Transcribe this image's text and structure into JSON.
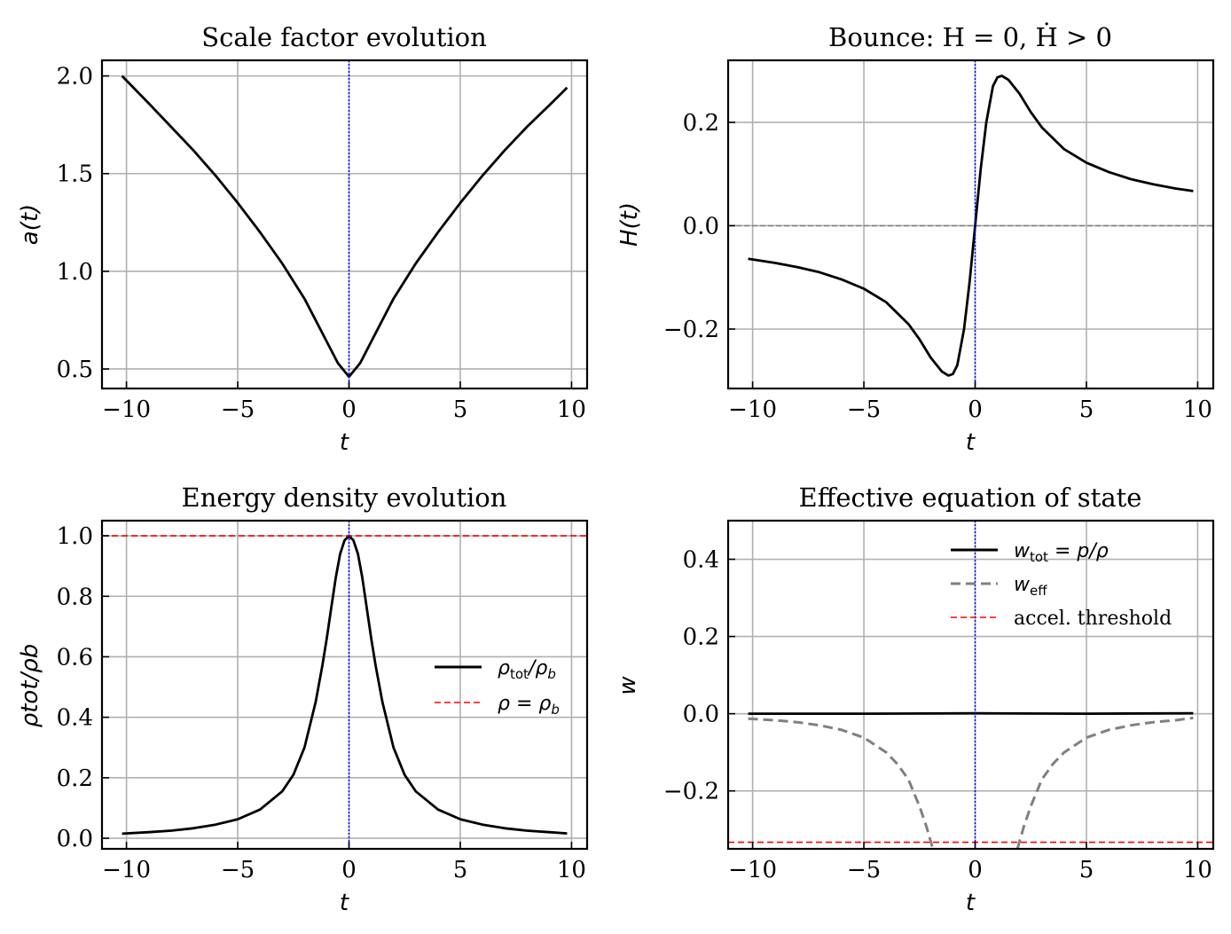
{
  "chart_data": [
    {
      "type": "line",
      "title": "Scale factor evolution",
      "xlabel": "t",
      "ylabel": "a(t)",
      "xlim": [
        -11.1,
        10.7
      ],
      "ylim": [
        0.4,
        2.08
      ],
      "xticks": [
        -10,
        -5,
        0,
        5,
        10
      ],
      "xtick_labels": [
        "−10",
        "−5",
        "0",
        "5",
        "10"
      ],
      "yticks": [
        0.5,
        1.0,
        1.5,
        2.0
      ],
      "ytick_labels": [
        "0.5",
        "1.0",
        "1.5",
        "2.0"
      ],
      "grid": true,
      "vline_x": 0,
      "series": [
        {
          "color": "#000000",
          "style": "solid",
          "x": [
            -10.2,
            -9,
            -8,
            -7,
            -6,
            -5,
            -4,
            -3,
            -2,
            -1,
            -0.5,
            0,
            0.5,
            1,
            2,
            3,
            4,
            5,
            6,
            7,
            8,
            9,
            9.8
          ],
          "y": [
            2.0,
            1.86,
            1.74,
            1.62,
            1.49,
            1.35,
            1.2,
            1.04,
            0.86,
            0.64,
            0.53,
            0.46,
            0.53,
            0.64,
            0.86,
            1.04,
            1.2,
            1.35,
            1.49,
            1.62,
            1.74,
            1.85,
            1.94
          ]
        }
      ]
    },
    {
      "type": "line",
      "title": "Bounce: H = 0, Ḣ > 0",
      "xlabel": "t",
      "ylabel": "H(t)",
      "xlim": [
        -11.1,
        10.7
      ],
      "ylim": [
        -0.315,
        0.32
      ],
      "xticks": [
        -10,
        -5,
        0,
        5,
        10
      ],
      "xtick_labels": [
        "−10",
        "−5",
        "0",
        "5",
        "10"
      ],
      "yticks": [
        -0.2,
        0.0,
        0.2
      ],
      "ytick_labels": [
        "−0.2",
        "0.0",
        "0.2"
      ],
      "grid": true,
      "vline_x": 0,
      "hline_y": 0,
      "series": [
        {
          "color": "#000000",
          "style": "solid",
          "x": [
            -10.2,
            -9,
            -8,
            -7,
            -6,
            -5,
            -4,
            -3,
            -2.5,
            -2,
            -1.5,
            -1.2,
            -1.0,
            -0.8,
            -0.5,
            -0.25,
            0,
            0.25,
            0.5,
            0.8,
            1.0,
            1.2,
            1.5,
            2,
            2.5,
            3,
            4,
            5,
            6,
            7,
            8,
            9,
            9.8
          ],
          "y": [
            -0.064,
            -0.072,
            -0.08,
            -0.09,
            -0.104,
            -0.122,
            -0.148,
            -0.19,
            -0.22,
            -0.255,
            -0.282,
            -0.29,
            -0.287,
            -0.27,
            -0.2,
            -0.11,
            0,
            0.11,
            0.2,
            0.27,
            0.287,
            0.29,
            0.282,
            0.255,
            0.22,
            0.19,
            0.148,
            0.122,
            0.104,
            0.09,
            0.08,
            0.072,
            0.067
          ]
        }
      ]
    },
    {
      "type": "line",
      "title": "Energy density evolution",
      "xlabel": "t",
      "ylabel": "ρtot/ρb",
      "xlim": [
        -11.1,
        10.7
      ],
      "ylim": [
        -0.035,
        1.05
      ],
      "xticks": [
        -10,
        -5,
        0,
        5,
        10
      ],
      "xtick_labels": [
        "−10",
        "−5",
        "0",
        "5",
        "10"
      ],
      "yticks": [
        0.0,
        0.2,
        0.4,
        0.6,
        0.8,
        1.0
      ],
      "ytick_labels": [
        "0.0",
        "0.2",
        "0.4",
        "0.6",
        "0.8",
        "1.0"
      ],
      "grid": true,
      "vline_x": 0,
      "legend_position": "center-right",
      "legend": [
        {
          "label_main": "ρ",
          "label_sub": "tot",
          "label_rest": "/ρ",
          "label_sub2": "b",
          "style": "solid",
          "color": "#000000"
        },
        {
          "label_main": "ρ = ρ",
          "label_sub": "",
          "label_rest": "",
          "label_sub2": "b",
          "style": "dashed",
          "color": "#ff0000"
        }
      ],
      "series": [
        {
          "color": "#000000",
          "style": "solid",
          "x": [
            -10.2,
            -9,
            -8,
            -7,
            -6,
            -5,
            -4,
            -3,
            -2.5,
            -2,
            -1.5,
            -1.2,
            -1.0,
            -0.8,
            -0.6,
            -0.4,
            -0.2,
            0,
            0.2,
            0.4,
            0.6,
            0.8,
            1.0,
            1.2,
            1.5,
            2,
            2.5,
            3,
            4,
            5,
            6,
            7,
            8,
            9,
            9.8
          ],
          "y": [
            0.015,
            0.02,
            0.025,
            0.033,
            0.045,
            0.063,
            0.095,
            0.155,
            0.21,
            0.3,
            0.45,
            0.57,
            0.66,
            0.76,
            0.86,
            0.94,
            0.985,
            1.0,
            0.985,
            0.94,
            0.86,
            0.76,
            0.66,
            0.57,
            0.45,
            0.3,
            0.21,
            0.155,
            0.095,
            0.063,
            0.045,
            0.033,
            0.025,
            0.02,
            0.016
          ]
        },
        {
          "color": "#ff0000",
          "style": "dashed",
          "hline_y": 1.0
        }
      ]
    },
    {
      "type": "line",
      "title": "Effective equation of state",
      "xlabel": "t",
      "ylabel": "w",
      "xlim": [
        -11.1,
        10.7
      ],
      "ylim": [
        -0.35,
        0.5
      ],
      "xticks": [
        -10,
        -5,
        0,
        5,
        10
      ],
      "xtick_labels": [
        "−10",
        "−5",
        "0",
        "5",
        "10"
      ],
      "yticks": [
        -0.2,
        0.0,
        0.2,
        0.4
      ],
      "ytick_labels": [
        "−0.2",
        "0.0",
        "0.2",
        "0.4"
      ],
      "grid": true,
      "vline_x": 0,
      "legend_position": "upper-right",
      "legend": [
        {
          "label_main": "w",
          "label_sub": "tot",
          "label_rest": " = p/ρ",
          "style": "solid",
          "color": "#000000"
        },
        {
          "label_main": "w",
          "label_sub": "eff",
          "label_rest": "",
          "style": "dashed",
          "color": "#808080"
        },
        {
          "label_main": "accel. threshold",
          "label_sub": "",
          "label_rest": "",
          "style": "dashed",
          "color": "#ff0000"
        }
      ],
      "series": [
        {
          "color": "#000000",
          "style": "solid",
          "x": [
            -10.2,
            -5,
            0,
            5,
            9.8
          ],
          "y": [
            0.0,
            0.0,
            0.001,
            0.0,
            0.001
          ]
        },
        {
          "color": "#808080",
          "style": "dashed",
          "x": [
            -10.2,
            -9,
            -8,
            -7,
            -6,
            -5,
            -4,
            -3.5,
            -3,
            -2.5,
            -2.2,
            -1.9
          ],
          "y": [
            -0.013,
            -0.017,
            -0.022,
            -0.03,
            -0.042,
            -0.062,
            -0.1,
            -0.13,
            -0.17,
            -0.24,
            -0.29,
            -0.35
          ]
        },
        {
          "color": "#808080",
          "style": "dashed",
          "x": [
            1.9,
            2.2,
            2.5,
            3,
            3.5,
            4,
            5,
            6,
            7,
            8,
            9,
            9.8
          ],
          "y": [
            -0.35,
            -0.29,
            -0.24,
            -0.17,
            -0.13,
            -0.1,
            -0.062,
            -0.042,
            -0.03,
            -0.022,
            -0.017,
            -0.011
          ]
        },
        {
          "color": "#ff0000",
          "style": "dashed",
          "hline_y": -0.333
        }
      ]
    }
  ]
}
